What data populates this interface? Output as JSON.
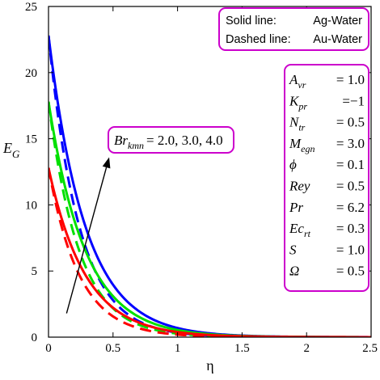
{
  "chart_data": {
    "type": "line",
    "xlabel": "η",
    "ylabel": {
      "main": "E",
      "sub": "G"
    },
    "xlim": [
      0,
      2.5
    ],
    "ylim": [
      0,
      25
    ],
    "xticks": [
      "0",
      "0.5",
      "1",
      "1.5",
      "2",
      "2.5"
    ],
    "yticks": [
      "0",
      "5",
      "10",
      "15",
      "20",
      "25"
    ],
    "grid": false,
    "legend": {
      "placement": "top-right",
      "entries": [
        {
          "label": "Solid line:",
          "value": "Ag-Water"
        },
        {
          "label": "Dashed line:",
          "value": "Au-Water"
        }
      ]
    },
    "annotation": {
      "symbol": "Br",
      "sub": "kmn",
      "values": "= 2.0, 3.0, 4.0",
      "arrow_from": {
        "x": 0.14,
        "y": 1.8
      },
      "arrow_to": {
        "x": 0.47,
        "y": 13.6
      }
    },
    "parameters": [
      {
        "sym": "A",
        "sub": "vr",
        "eq": "= 1.0"
      },
      {
        "sym": "K",
        "sub": "pr",
        "eq": "=−1"
      },
      {
        "sym": "N",
        "sub": "tr",
        "eq": "= 0.5"
      },
      {
        "sym": "M",
        "sub": "egn",
        "eq": "= 3.0"
      },
      {
        "sym": "ϕ",
        "sub": "",
        "eq": "= 0.1"
      },
      {
        "sym": "Rey",
        "sub": "",
        "eq": "= 0.5"
      },
      {
        "sym": "Pr",
        "sub": "",
        "eq": "= 6.2"
      },
      {
        "sym": "Ec",
        "sub": "rt",
        "eq": "= 0.3"
      },
      {
        "sym": "S",
        "sub": "",
        "eq": "= 1.0"
      },
      {
        "sym": "Ω",
        "sub": "",
        "eq": "= 0.5"
      }
    ],
    "series": [
      {
        "color": "#0000ff",
        "style": "solid",
        "y0": 22.8,
        "decay": 3.5
      },
      {
        "color": "#0000ff",
        "style": "dashed",
        "y0": 22.8,
        "decay": 4.2
      },
      {
        "color": "#00e000",
        "style": "solid",
        "y0": 17.8,
        "decay": 3.5
      },
      {
        "color": "#00e000",
        "style": "dashed",
        "y0": 17.8,
        "decay": 4.2
      },
      {
        "color": "#ff0000",
        "style": "solid",
        "y0": 12.8,
        "decay": 3.5
      },
      {
        "color": "#ff0000",
        "style": "dashed",
        "y0": 12.8,
        "decay": 4.2
      }
    ],
    "colors": {
      "box": "#cc00cc",
      "axis": "#000000"
    }
  }
}
